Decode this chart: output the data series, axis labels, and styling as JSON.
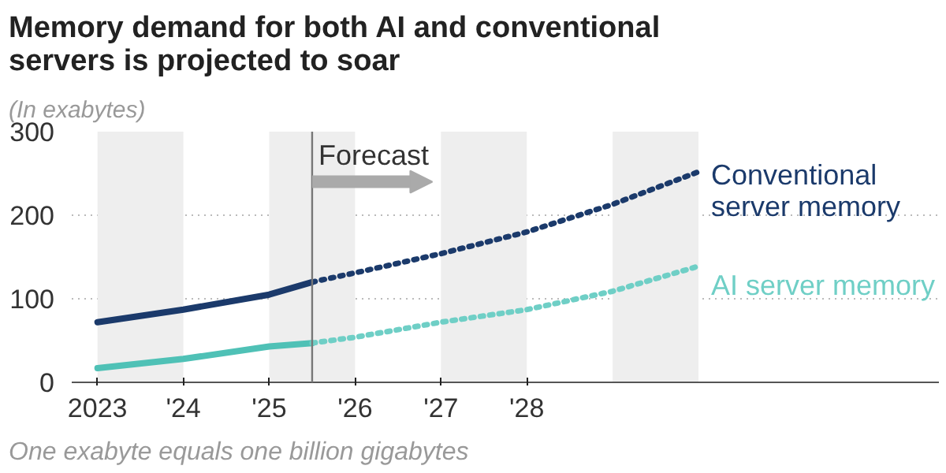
{
  "chart_data": {
    "type": "line",
    "title": "Memory demand for both AI and conventional servers is projected to soar",
    "subtitle": "(In exabytes)",
    "annotations": [
      "One exabyte equals one billion gigabytes"
    ],
    "series": [
      {
        "color": "#1b3a6b",
        "x": [
          2023,
          2024,
          2025,
          2025.5
        ],
        "values": [
          72,
          87,
          105,
          120
        ],
        "line_style": "solid"
      },
      {
        "name": "Conventional server memory",
        "color": "#1b3a6b",
        "x": [
          2025.5,
          2026,
          2027,
          2028,
          2029,
          2030
        ],
        "values": [
          120,
          131,
          154,
          180,
          213,
          252
        ],
        "line_style": "dotted"
      },
      {
        "color": "#4fc1b6",
        "x": [
          2023,
          2024,
          2025,
          2025.5
        ],
        "values": [
          17,
          28,
          43,
          47
        ],
        "line_style": "solid"
      },
      {
        "name": "AI server memory",
        "color": "#6fcfc6",
        "x": [
          2025.5,
          2026,
          2027,
          2028,
          2029,
          2030
        ],
        "values": [
          47,
          54,
          72,
          87,
          109,
          139
        ],
        "line_style": "dotted"
      }
    ],
    "xlim": [
      2022.7,
      2032.8
    ],
    "xticks": [
      {
        "value": 2023,
        "label": "2023"
      },
      {
        "value": 2024,
        "label": "'24"
      },
      {
        "value": 2025,
        "label": "'25"
      },
      {
        "value": 2026,
        "label": "'26"
      },
      {
        "value": 2027,
        "label": "'27"
      },
      {
        "value": 2028,
        "label": "'28"
      }
    ],
    "ylim": [
      0,
      300
    ],
    "yticks": [
      0,
      100,
      200,
      300
    ],
    "grid": "y",
    "marker": "none",
    "ref_lines": [
      {
        "axis": "x",
        "value": 2025.5,
        "label": "Forecast",
        "color": "#777777"
      }
    ],
    "bands": [
      {
        "axis": "x",
        "from": 2023,
        "to": 2024,
        "color": "#eeeeee"
      },
      {
        "axis": "x",
        "from": 2025,
        "to": 2026,
        "color": "#eeeeee"
      },
      {
        "axis": "x",
        "from": 2027,
        "to": 2028,
        "color": "#eeeeee"
      },
      {
        "axis": "x",
        "from": 2029,
        "to": 2030,
        "color": "#eeeeee"
      }
    ]
  }
}
